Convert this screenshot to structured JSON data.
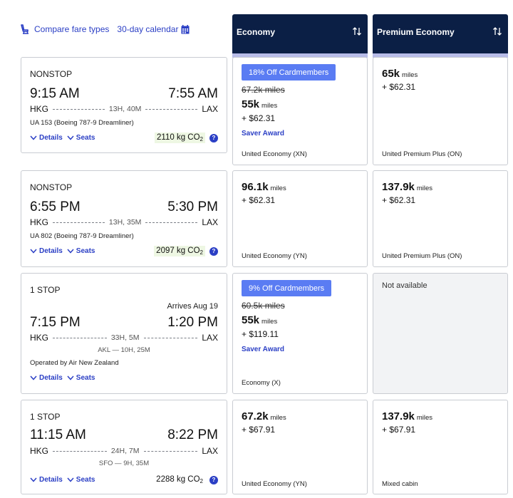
{
  "toolbar": {
    "compare_label": "Compare fare types",
    "calendar_label": "30-day calendar"
  },
  "cabins": [
    {
      "label": "Economy"
    },
    {
      "label": "Premium Economy"
    }
  ],
  "flights": [
    {
      "stops": "NONSTOP",
      "depart_time": "9:15 AM",
      "arrive_time": "7:55 AM",
      "origin": "HKG",
      "destination": "LAX",
      "duration": "13H, 40M",
      "flight_info": "UA 153 (Boeing 787-9 Dreamliner)",
      "details_label": "Details",
      "seats_label": "Seats",
      "co2_value": "2110 kg CO",
      "co2_sub": "2",
      "economy": {
        "badge": "18% Off Cardmembers",
        "original_miles": "67.2k miles",
        "miles": "55k",
        "miles_unit": "miles",
        "taxes": "+ $62.31",
        "saver": "Saver Award",
        "fare_class": "United Economy (XN)"
      },
      "premium": {
        "miles": "65k",
        "miles_unit": "miles",
        "taxes": "+ $62.31",
        "fare_class": "United Premium Plus (ON)"
      }
    },
    {
      "stops": "NONSTOP",
      "depart_time": "6:55 PM",
      "arrive_time": "5:30 PM",
      "origin": "HKG",
      "destination": "LAX",
      "duration": "13H, 35M",
      "flight_info": "UA 802 (Boeing 787-9 Dreamliner)",
      "details_label": "Details",
      "seats_label": "Seats",
      "co2_value": "2097 kg CO",
      "co2_sub": "2",
      "economy": {
        "miles": "96.1k",
        "miles_unit": "miles",
        "taxes": "+ $62.31",
        "fare_class": "United Economy (YN)"
      },
      "premium": {
        "miles": "137.9k",
        "miles_unit": "miles",
        "taxes": "+ $62.31",
        "fare_class": "United Premium Plus (ON)"
      }
    },
    {
      "stops": "1 STOP",
      "arrives_note": "Arrives Aug 19",
      "depart_time": "7:15 PM",
      "arrive_time": "1:20 PM",
      "origin": "HKG",
      "destination": "LAX",
      "duration": "33H, 5M",
      "connection": "AKL — 10H, 25M",
      "flight_info": "Operated by Air New Zealand",
      "details_label": "Details",
      "seats_label": "Seats",
      "economy": {
        "badge": "9% Off Cardmembers",
        "original_miles": "60.5k miles",
        "miles": "55k",
        "miles_unit": "miles",
        "taxes": "+ $119.11",
        "saver": "Saver Award",
        "fare_class": "Economy (X)"
      },
      "premium": {
        "unavailable": "Not available"
      }
    },
    {
      "stops": "1 STOP",
      "depart_time": "11:15 AM",
      "arrive_time": "8:22 PM",
      "origin": "HKG",
      "destination": "LAX",
      "duration": "24H, 7M",
      "connection": "SFO — 9H, 35M",
      "details_label": "Details",
      "seats_label": "Seats",
      "co2_value": "2288 kg CO",
      "co2_sub": "2",
      "economy": {
        "miles": "67.2k",
        "miles_unit": "miles",
        "taxes": "+ $67.91",
        "fare_class": "United Economy (YN)"
      },
      "premium": {
        "miles": "137.9k",
        "miles_unit": "miles",
        "taxes": "+ $67.91",
        "fare_class": "Mixed cabin"
      }
    }
  ]
}
